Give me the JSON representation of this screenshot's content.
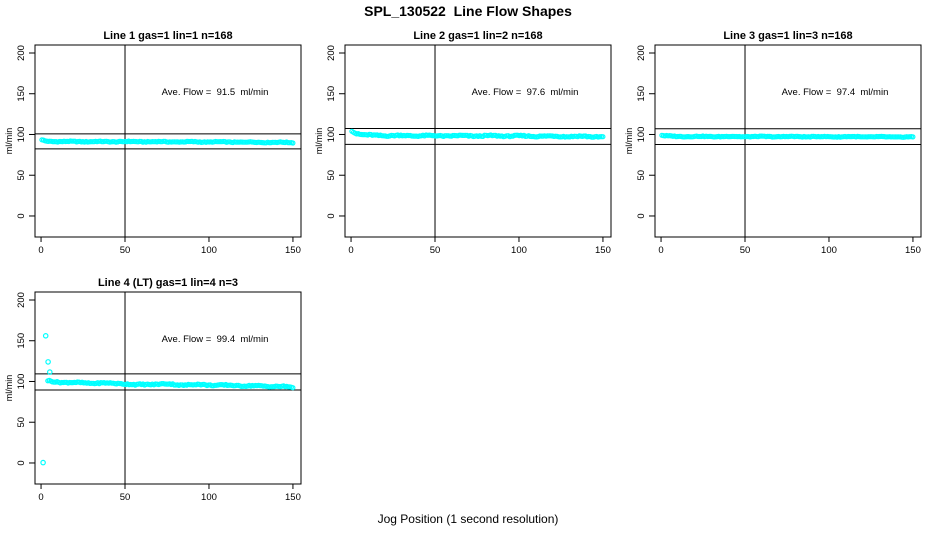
{
  "title": "SPL_130522  Line Flow Shapes",
  "xlabel": "Jog Position (1 second resolution)",
  "point_color": "#00FFFF",
  "axis_color": "#000000",
  "chart_data": [
    {
      "type": "scatter",
      "title": "Line 1 gas=1 lin=1 n=168",
      "annotation": "Ave. Flow =  91.5  ml/min",
      "ave_flow_ml_min": 91.5,
      "n": 168,
      "ylabel": "ml/min",
      "x_ticks": [
        0,
        50,
        100,
        150
      ],
      "y_ticks": [
        0,
        50,
        100,
        150,
        200
      ],
      "xlim": [
        -3.6,
        154.8
      ],
      "ylim": [
        -25.8,
        209.8
      ],
      "vline_x": 50,
      "hlines": [
        100.7,
        82.4
      ],
      "band": {
        "x_start": 0.5,
        "x_end": 150,
        "points": 160,
        "jitter": 0.6,
        "seed": 1,
        "trend": [
          [
            0.5,
            93.5
          ],
          [
            2,
            92.2
          ],
          [
            5,
            91.6
          ],
          [
            15,
            91.3
          ],
          [
            60,
            91.2
          ],
          [
            110,
            90.8
          ],
          [
            150,
            90.2
          ]
        ]
      },
      "outliers": []
    },
    {
      "type": "scatter",
      "title": "Line 2 gas=1 lin=2 n=168",
      "annotation": "Ave. Flow =  97.6  ml/min",
      "ave_flow_ml_min": 97.6,
      "n": 168,
      "ylabel": "ml/min",
      "x_ticks": [
        0,
        50,
        100,
        150
      ],
      "y_ticks": [
        0,
        50,
        100,
        150,
        200
      ],
      "xlim": [
        -3.6,
        154.8
      ],
      "ylim": [
        -25.8,
        209.8
      ],
      "vline_x": 50,
      "hlines": [
        107.4,
        87.8
      ],
      "band": {
        "x_start": 0.5,
        "x_end": 150,
        "points": 160,
        "jitter": 0.95,
        "seed": 2,
        "trend": [
          [
            0.5,
            104.8
          ],
          [
            1.5,
            103.5
          ],
          [
            3,
            101.5
          ],
          [
            6,
            100.0
          ],
          [
            10,
            99.2
          ],
          [
            20,
            98.7
          ],
          [
            50,
            98.4
          ],
          [
            90,
            98.3
          ],
          [
            125,
            97.8
          ],
          [
            150,
            97.3
          ]
        ]
      },
      "outliers": []
    },
    {
      "type": "scatter",
      "title": "Line 3 gas=1 lin=3 n=168",
      "annotation": "Ave. Flow =  97.4  ml/min",
      "ave_flow_ml_min": 97.4,
      "n": 168,
      "ylabel": "ml/min",
      "x_ticks": [
        0,
        50,
        100,
        150
      ],
      "y_ticks": [
        0,
        50,
        100,
        150,
        200
      ],
      "xlim": [
        -3.6,
        154.8
      ],
      "ylim": [
        -25.8,
        209.8
      ],
      "vline_x": 50,
      "hlines": [
        107.1,
        87.7
      ],
      "band": {
        "x_start": 0.5,
        "x_end": 150,
        "points": 160,
        "jitter": 0.55,
        "seed": 3,
        "trend": [
          [
            0.5,
            99.2
          ],
          [
            2,
            98.4
          ],
          [
            8,
            97.7
          ],
          [
            30,
            97.5
          ],
          [
            80,
            97.4
          ],
          [
            120,
            97.2
          ],
          [
            150,
            96.9
          ]
        ]
      },
      "outliers": []
    },
    {
      "type": "scatter",
      "title": "Line 4 (LT) gas=1 lin=4 n=3",
      "annotation": "Ave. Flow =  99.4  ml/min",
      "ave_flow_ml_min": 99.4,
      "n": 3,
      "ylabel": "ml/min",
      "x_ticks": [
        0,
        50,
        100,
        150
      ],
      "y_ticks": [
        0,
        50,
        100,
        150,
        200
      ],
      "xlim": [
        -3.6,
        154.8
      ],
      "ylim": [
        -25.8,
        209.8
      ],
      "vline_x": 50,
      "hlines": [
        109.3,
        89.5
      ],
      "band": {
        "x_start": 4,
        "x_end": 150,
        "points": 158,
        "jitter": 0.95,
        "seed": 4,
        "trend": [
          [
            4,
            100.8
          ],
          [
            7,
            99.8
          ],
          [
            12,
            99.2
          ],
          [
            22,
            98.4
          ],
          [
            35,
            98.0
          ],
          [
            48,
            97.6
          ],
          [
            56,
            95.8
          ],
          [
            63,
            96.6
          ],
          [
            75,
            96.8
          ],
          [
            85,
            95.8
          ],
          [
            95,
            96.2
          ],
          [
            105,
            95.4
          ],
          [
            115,
            95.2
          ],
          [
            125,
            94.6
          ],
          [
            135,
            94.3
          ],
          [
            145,
            93.6
          ],
          [
            150,
            92.8
          ]
        ]
      },
      "outliers": [
        [
          1.2,
          0.5
        ],
        [
          2.8,
          156.0
        ],
        [
          4.2,
          124.0
        ],
        [
          5.2,
          111.5
        ]
      ]
    }
  ]
}
